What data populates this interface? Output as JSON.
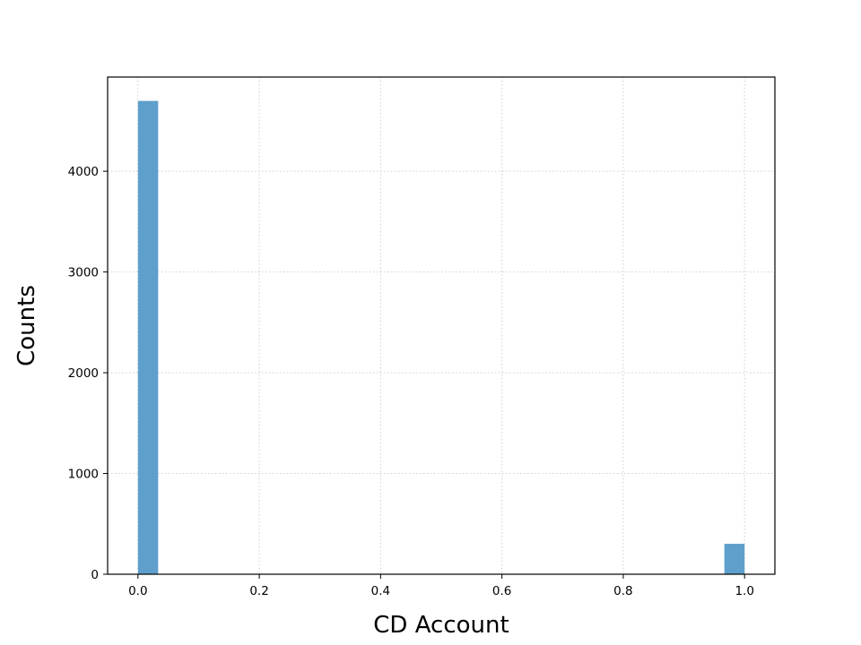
{
  "chart_data": {
    "type": "bar",
    "title": "",
    "xlabel": "CD Account",
    "ylabel": "Counts",
    "bar_color": "#5f9fcc",
    "grid": true,
    "xlim": [
      -0.05,
      1.05
    ],
    "ylim": [
      0,
      4935
    ],
    "bins": [
      {
        "x0": 0.0,
        "x1": 0.0333,
        "count": 4698
      },
      {
        "x0": 0.9667,
        "x1": 1.0,
        "count": 302
      }
    ],
    "xticks": [
      {
        "value": 0.0,
        "label": "0.0"
      },
      {
        "value": 0.2,
        "label": "0.2"
      },
      {
        "value": 0.4,
        "label": "0.4"
      },
      {
        "value": 0.6,
        "label": "0.6"
      },
      {
        "value": 0.8,
        "label": "0.8"
      },
      {
        "value": 1.0,
        "label": "1.0"
      }
    ],
    "yticks": [
      {
        "value": 0,
        "label": "0"
      },
      {
        "value": 1000,
        "label": "1000"
      },
      {
        "value": 2000,
        "label": "2000"
      },
      {
        "value": 3000,
        "label": "3000"
      },
      {
        "value": 4000,
        "label": "4000"
      }
    ]
  }
}
